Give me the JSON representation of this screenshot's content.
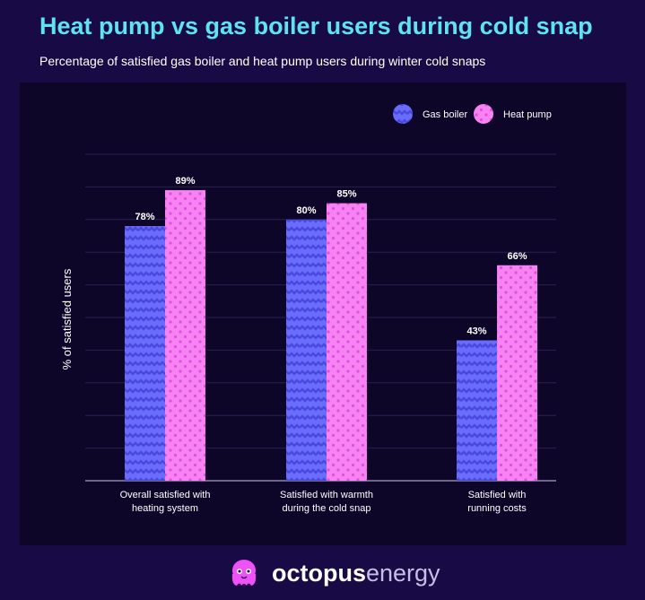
{
  "title": "Heat pump vs gas boiler users during cold snap",
  "subtitle": "Percentage of satisfied gas boiler and heat pump users during winter cold snaps",
  "brand": {
    "word1": "octopus",
    "word2": "energy"
  },
  "chart_data": {
    "type": "bar",
    "ylabel": "% of satisfied users",
    "xlabel": "",
    "ylim": [
      0,
      100
    ],
    "grid": true,
    "legend_position": "top-right",
    "categories": [
      [
        "Overall satisfied with",
        "heating system"
      ],
      [
        "Satisfied with warmth",
        "during the cold snap"
      ],
      [
        "Satisfied with",
        "running costs"
      ]
    ],
    "series": [
      {
        "name": "Gas boiler",
        "values": [
          78,
          80,
          43
        ],
        "labels": [
          "78%",
          "80%",
          "43%"
        ],
        "color": "#5b5cf6",
        "pattern": "wave"
      },
      {
        "name": "Heat pump",
        "values": [
          89,
          85,
          66
        ],
        "labels": [
          "89%",
          "85%",
          "66%"
        ],
        "color": "#f77cf2",
        "pattern": "dots"
      }
    ]
  }
}
